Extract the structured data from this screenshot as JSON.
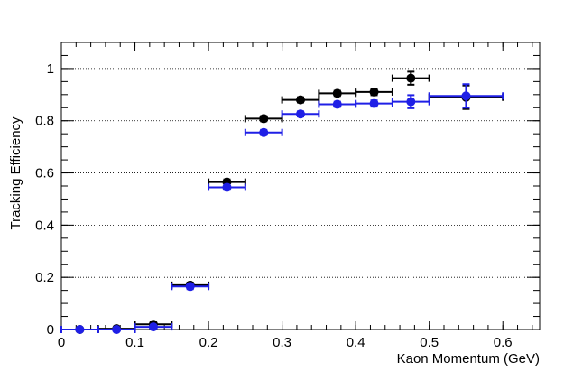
{
  "chart_data": {
    "type": "scatter",
    "xlabel": "Kaon Momentum (GeV)",
    "ylabel": "Tracking Efficiency",
    "xlim": [
      0,
      0.65
    ],
    "ylim": [
      0,
      1.1
    ],
    "grid": "horizontal-dotted",
    "x_ticks": [
      "0",
      "0.1",
      "0.2",
      "0.3",
      "0.4",
      "0.5",
      "0.6"
    ],
    "y_ticks": [
      "0",
      "0.2",
      "0.4",
      "0.6",
      "0.8",
      "1"
    ],
    "series": [
      {
        "color": "#000000",
        "points": [
          {
            "x": 0.025,
            "xerr": 0.025,
            "y": 0.0,
            "yerr": 0.0
          },
          {
            "x": 0.075,
            "xerr": 0.025,
            "y": 0.003,
            "yerr": 0.0
          },
          {
            "x": 0.125,
            "xerr": 0.025,
            "y": 0.02,
            "yerr": 0.005
          },
          {
            "x": 0.175,
            "xerr": 0.025,
            "y": 0.17,
            "yerr": 0.01
          },
          {
            "x": 0.225,
            "xerr": 0.025,
            "y": 0.565,
            "yerr": 0.01
          },
          {
            "x": 0.275,
            "xerr": 0.025,
            "y": 0.808,
            "yerr": 0.01
          },
          {
            "x": 0.325,
            "xerr": 0.025,
            "y": 0.88,
            "yerr": 0.01
          },
          {
            "x": 0.375,
            "xerr": 0.025,
            "y": 0.905,
            "yerr": 0.01
          },
          {
            "x": 0.425,
            "xerr": 0.025,
            "y": 0.91,
            "yerr": 0.012
          },
          {
            "x": 0.475,
            "xerr": 0.025,
            "y": 0.963,
            "yerr": 0.025
          },
          {
            "x": 0.55,
            "xerr": 0.05,
            "y": 0.89,
            "yerr": 0.045
          }
        ]
      },
      {
        "color": "#1f1fe6",
        "points": [
          {
            "x": 0.025,
            "xerr": 0.025,
            "y": 0.0,
            "yerr": 0.0
          },
          {
            "x": 0.075,
            "xerr": 0.025,
            "y": 0.0,
            "yerr": 0.0
          },
          {
            "x": 0.125,
            "xerr": 0.025,
            "y": 0.01,
            "yerr": 0.004
          },
          {
            "x": 0.175,
            "xerr": 0.025,
            "y": 0.165,
            "yerr": 0.01
          },
          {
            "x": 0.225,
            "xerr": 0.025,
            "y": 0.545,
            "yerr": 0.01
          },
          {
            "x": 0.275,
            "xerr": 0.025,
            "y": 0.755,
            "yerr": 0.01
          },
          {
            "x": 0.325,
            "xerr": 0.025,
            "y": 0.826,
            "yerr": 0.01
          },
          {
            "x": 0.375,
            "xerr": 0.025,
            "y": 0.863,
            "yerr": 0.01
          },
          {
            "x": 0.425,
            "xerr": 0.025,
            "y": 0.866,
            "yerr": 0.012
          },
          {
            "x": 0.475,
            "xerr": 0.025,
            "y": 0.873,
            "yerr": 0.025
          },
          {
            "x": 0.55,
            "xerr": 0.05,
            "y": 0.895,
            "yerr": 0.045
          }
        ]
      }
    ]
  }
}
